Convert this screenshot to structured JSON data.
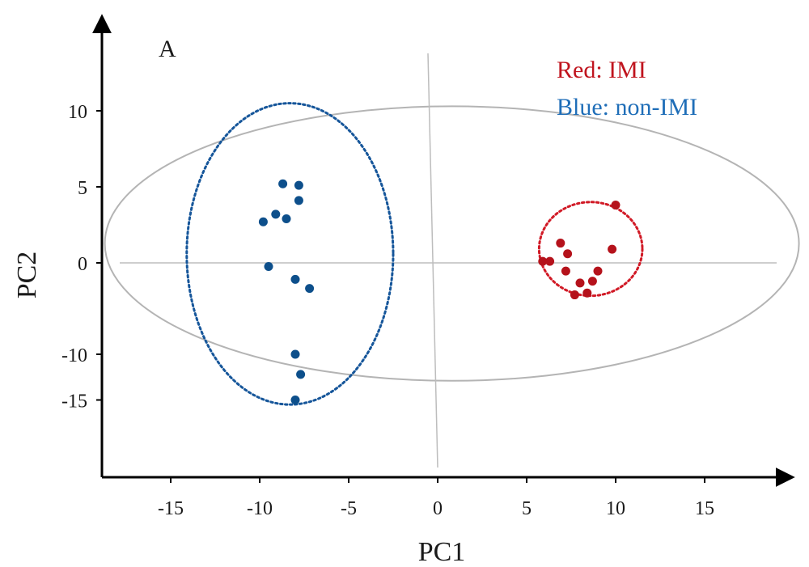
{
  "chart_data": {
    "type": "scatter",
    "panel_label": "A",
    "xlabel": "PC1",
    "ylabel": "PC2",
    "xticks": [
      -15,
      -10,
      -5,
      0,
      5,
      10,
      15
    ],
    "yticks": [
      10,
      5,
      0,
      -10,
      -15
    ],
    "legend": [
      {
        "text": "Red: IMI",
        "color": "#c0141e"
      },
      {
        "text": "Blue: non-IMI",
        "color": "#1f6eb8"
      }
    ],
    "series": [
      {
        "name": "IMI",
        "color": "#b5121b",
        "points": [
          [
            10.0,
            3.8
          ],
          [
            6.9,
            1.3
          ],
          [
            7.3,
            0.6
          ],
          [
            9.8,
            0.9
          ],
          [
            5.9,
            0.1
          ],
          [
            6.3,
            0.1
          ],
          [
            7.2,
            -0.9
          ],
          [
            9.0,
            -0.9
          ],
          [
            8.7,
            -2.0
          ],
          [
            8.0,
            -2.2
          ],
          [
            8.4,
            -3.3
          ],
          [
            7.7,
            -3.5
          ]
        ]
      },
      {
        "name": "non-IMI",
        "color": "#0d4f8b",
        "points": [
          [
            -8.7,
            5.2
          ],
          [
            -7.8,
            5.1
          ],
          [
            -7.8,
            4.1
          ],
          [
            -9.1,
            3.2
          ],
          [
            -8.5,
            2.9
          ],
          [
            -9.8,
            2.7
          ],
          [
            -9.5,
            -0.4
          ],
          [
            -8.0,
            -1.8
          ],
          [
            -7.2,
            -2.8
          ],
          [
            -8.0,
            -10.0
          ],
          [
            -7.7,
            -12.2
          ],
          [
            -8.0,
            -15.0
          ]
        ]
      }
    ],
    "cluster_ellipses": [
      {
        "name": "IMI",
        "color": "#d11a26",
        "cx": 8.6,
        "cy": 0.2,
        "rx": 2.9,
        "ry": 3.8
      },
      {
        "name": "non-IMI",
        "color": "#16569a",
        "cx": -8.3,
        "cy": -2.5,
        "rx": 5.8,
        "ry": 13.0
      }
    ],
    "confidence_ellipse": {
      "cx": 0.8,
      "cy": -1.3,
      "rx": 19.5,
      "ry": 11.6
    }
  }
}
